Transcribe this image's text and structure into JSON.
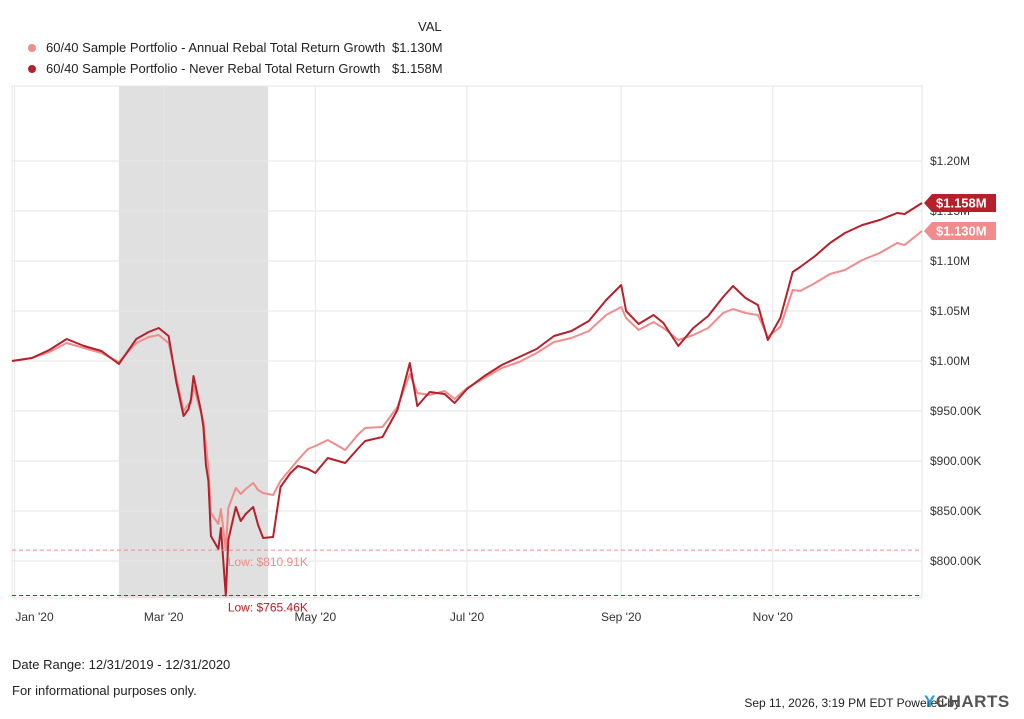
{
  "legend": {
    "header": "VAL",
    "items": [
      {
        "name": "60/40 Sample Portfolio - Annual Rebal Total Return Growth",
        "value": "$1.130M",
        "color": "#f08c8c"
      },
      {
        "name": "60/40 Sample Portfolio - Never Rebal Total Return Growth",
        "value": "$1.158M",
        "color": "#b5202b"
      }
    ]
  },
  "footer": {
    "date_range": "Date Range: 12/31/2019 - 12/31/2020",
    "disclaimer": "For informational purposes only.",
    "timestamp": "Sep 11, 2026, 3:19 PM EDT Powered by",
    "brand_y": "Y",
    "brand_rest": "CHARTS"
  },
  "chart_data": {
    "type": "line",
    "x_range": [
      "2019-12-31",
      "2020-12-31"
    ],
    "ylim": [
      763000,
      1275000
    ],
    "grid": true,
    "legend_position": "top-left",
    "x_ticks": [
      {
        "date": "2020-01-01",
        "label": "Jan '20"
      },
      {
        "date": "2020-03-01",
        "label": "Mar '20"
      },
      {
        "date": "2020-05-01",
        "label": "May '20"
      },
      {
        "date": "2020-07-01",
        "label": "Jul '20"
      },
      {
        "date": "2020-09-01",
        "label": "Sep '20"
      },
      {
        "date": "2020-11-01",
        "label": "Nov '20"
      }
    ],
    "y_ticks": [
      {
        "value": 800000,
        "label": "$800.00K"
      },
      {
        "value": 850000,
        "label": "$850.00K"
      },
      {
        "value": 900000,
        "label": "$900.00K"
      },
      {
        "value": 950000,
        "label": "$950.00K"
      },
      {
        "value": 1000000,
        "label": "$1.00M"
      },
      {
        "value": 1050000,
        "label": "$1.05M"
      },
      {
        "value": 1100000,
        "label": "$1.10M"
      },
      {
        "value": 1150000,
        "label": "$1.15M"
      },
      {
        "value": 1200000,
        "label": "$1.20M"
      }
    ],
    "shaded_region": {
      "start": "2020-02-12",
      "end": "2020-04-12",
      "color": "#e0e0e0"
    },
    "series": [
      {
        "name": "60/40 Sample Portfolio - Annual Rebal Total Return Growth",
        "color": "#f08c8c",
        "end_label": "$1.130M",
        "end_value": 1130000,
        "low_label": "Low: $810.91K",
        "low_value": 810910,
        "points": [
          [
            "2019-12-31",
            1000000
          ],
          [
            "2020-01-08",
            1003000
          ],
          [
            "2020-01-15",
            1009000
          ],
          [
            "2020-01-22",
            1018000
          ],
          [
            "2020-01-29",
            1013000
          ],
          [
            "2020-02-05",
            1008000
          ],
          [
            "2020-02-12",
            999000
          ],
          [
            "2020-02-19",
            1018000
          ],
          [
            "2020-02-24",
            1024000
          ],
          [
            "2020-02-28",
            1026000
          ],
          [
            "2020-03-03",
            1018000
          ],
          [
            "2020-03-06",
            985000
          ],
          [
            "2020-03-09",
            950000
          ],
          [
            "2020-03-11",
            957000
          ],
          [
            "2020-03-12",
            958000
          ],
          [
            "2020-03-13",
            975000
          ],
          [
            "2020-03-16",
            948000
          ],
          [
            "2020-03-17",
            940000
          ],
          [
            "2020-03-18",
            916000
          ],
          [
            "2020-03-19",
            893000
          ],
          [
            "2020-03-20",
            848000
          ],
          [
            "2020-03-23",
            837000
          ],
          [
            "2020-03-24",
            852000
          ],
          [
            "2020-03-26",
            810910
          ],
          [
            "2020-03-27",
            853000
          ],
          [
            "2020-03-30",
            873000
          ],
          [
            "2020-04-01",
            867000
          ],
          [
            "2020-04-03",
            872000
          ],
          [
            "2020-04-06",
            878000
          ],
          [
            "2020-04-08",
            871000
          ],
          [
            "2020-04-10",
            868000
          ],
          [
            "2020-04-14",
            866000
          ],
          [
            "2020-04-17",
            880000
          ],
          [
            "2020-04-21",
            892000
          ],
          [
            "2020-04-24",
            901000
          ],
          [
            "2020-04-28",
            912000
          ],
          [
            "2020-05-01",
            915000
          ],
          [
            "2020-05-06",
            921000
          ],
          [
            "2020-05-13",
            911000
          ],
          [
            "2020-05-18",
            926000
          ],
          [
            "2020-05-21",
            933000
          ],
          [
            "2020-05-28",
            934000
          ],
          [
            "2020-06-03",
            954000
          ],
          [
            "2020-06-08",
            987000
          ],
          [
            "2020-06-11",
            968000
          ],
          [
            "2020-06-16",
            966000
          ],
          [
            "2020-06-22",
            970000
          ],
          [
            "2020-06-26",
            962000
          ],
          [
            "2020-07-01",
            973000
          ],
          [
            "2020-07-08",
            983000
          ],
          [
            "2020-07-15",
            993000
          ],
          [
            "2020-07-22",
            999000
          ],
          [
            "2020-07-29",
            1008000
          ],
          [
            "2020-08-05",
            1019000
          ],
          [
            "2020-08-12",
            1023000
          ],
          [
            "2020-08-19",
            1030000
          ],
          [
            "2020-08-26",
            1046000
          ],
          [
            "2020-09-01",
            1054000
          ],
          [
            "2020-09-03",
            1043000
          ],
          [
            "2020-09-08",
            1031000
          ],
          [
            "2020-09-14",
            1039000
          ],
          [
            "2020-09-18",
            1033000
          ],
          [
            "2020-09-24",
            1021000
          ],
          [
            "2020-09-30",
            1026000
          ],
          [
            "2020-10-06",
            1033000
          ],
          [
            "2020-10-12",
            1048000
          ],
          [
            "2020-10-16",
            1052000
          ],
          [
            "2020-10-21",
            1048000
          ],
          [
            "2020-10-26",
            1046000
          ],
          [
            "2020-10-30",
            1024000
          ],
          [
            "2020-11-04",
            1034000
          ],
          [
            "2020-11-09",
            1071000
          ],
          [
            "2020-11-12",
            1070000
          ],
          [
            "2020-11-18",
            1078000
          ],
          [
            "2020-11-24",
            1087000
          ],
          [
            "2020-11-30",
            1091000
          ],
          [
            "2020-12-07",
            1101000
          ],
          [
            "2020-12-14",
            1108000
          ],
          [
            "2020-12-21",
            1118000
          ],
          [
            "2020-12-24",
            1116000
          ],
          [
            "2020-12-31",
            1130000
          ]
        ]
      },
      {
        "name": "60/40 Sample Portfolio - Never Rebal Total Return Growth",
        "color": "#b5202b",
        "end_label": "$1.158M",
        "end_value": 1158000,
        "low_label": "Low: $765.46K",
        "low_value": 765460,
        "points": [
          [
            "2019-12-31",
            1000000
          ],
          [
            "2020-01-08",
            1003000
          ],
          [
            "2020-01-15",
            1011000
          ],
          [
            "2020-01-22",
            1022000
          ],
          [
            "2020-01-29",
            1015000
          ],
          [
            "2020-02-05",
            1010000
          ],
          [
            "2020-02-12",
            997000
          ],
          [
            "2020-02-19",
            1022000
          ],
          [
            "2020-02-24",
            1029000
          ],
          [
            "2020-02-28",
            1033000
          ],
          [
            "2020-03-03",
            1025000
          ],
          [
            "2020-03-06",
            980000
          ],
          [
            "2020-03-09",
            945000
          ],
          [
            "2020-03-11",
            952000
          ],
          [
            "2020-03-12",
            962000
          ],
          [
            "2020-03-13",
            985000
          ],
          [
            "2020-03-16",
            950000
          ],
          [
            "2020-03-17",
            934000
          ],
          [
            "2020-03-18",
            896000
          ],
          [
            "2020-03-19",
            880000
          ],
          [
            "2020-03-20",
            825000
          ],
          [
            "2020-03-23",
            812000
          ],
          [
            "2020-03-24",
            833000
          ],
          [
            "2020-03-26",
            765460
          ],
          [
            "2020-03-27",
            821000
          ],
          [
            "2020-03-30",
            854000
          ],
          [
            "2020-04-01",
            840000
          ],
          [
            "2020-04-03",
            847000
          ],
          [
            "2020-04-06",
            854000
          ],
          [
            "2020-04-08",
            836000
          ],
          [
            "2020-04-10",
            823000
          ],
          [
            "2020-04-14",
            824000
          ],
          [
            "2020-04-17",
            874000
          ],
          [
            "2020-04-21",
            888000
          ],
          [
            "2020-04-24",
            895000
          ],
          [
            "2020-04-28",
            892000
          ],
          [
            "2020-05-01",
            888000
          ],
          [
            "2020-05-06",
            903000
          ],
          [
            "2020-05-13",
            898000
          ],
          [
            "2020-05-18",
            912000
          ],
          [
            "2020-05-21",
            920000
          ],
          [
            "2020-05-28",
            924000
          ],
          [
            "2020-06-03",
            951000
          ],
          [
            "2020-06-08",
            998000
          ],
          [
            "2020-06-11",
            955000
          ],
          [
            "2020-06-16",
            969000
          ],
          [
            "2020-06-22",
            967000
          ],
          [
            "2020-06-26",
            958000
          ],
          [
            "2020-07-01",
            972000
          ],
          [
            "2020-07-08",
            985000
          ],
          [
            "2020-07-15",
            996000
          ],
          [
            "2020-07-22",
            1004000
          ],
          [
            "2020-07-29",
            1012000
          ],
          [
            "2020-08-05",
            1025000
          ],
          [
            "2020-08-12",
            1030000
          ],
          [
            "2020-08-19",
            1040000
          ],
          [
            "2020-08-26",
            1061000
          ],
          [
            "2020-09-01",
            1076000
          ],
          [
            "2020-09-03",
            1050000
          ],
          [
            "2020-09-08",
            1037000
          ],
          [
            "2020-09-14",
            1046000
          ],
          [
            "2020-09-18",
            1038000
          ],
          [
            "2020-09-24",
            1015000
          ],
          [
            "2020-09-30",
            1033000
          ],
          [
            "2020-10-06",
            1045000
          ],
          [
            "2020-10-12",
            1064000
          ],
          [
            "2020-10-16",
            1075000
          ],
          [
            "2020-10-21",
            1063000
          ],
          [
            "2020-10-26",
            1056000
          ],
          [
            "2020-10-30",
            1021000
          ],
          [
            "2020-11-04",
            1043000
          ],
          [
            "2020-11-09",
            1089000
          ],
          [
            "2020-11-12",
            1094000
          ],
          [
            "2020-11-18",
            1105000
          ],
          [
            "2020-11-24",
            1118000
          ],
          [
            "2020-11-30",
            1128000
          ],
          [
            "2020-12-07",
            1136000
          ],
          [
            "2020-12-14",
            1141000
          ],
          [
            "2020-12-21",
            1148000
          ],
          [
            "2020-12-24",
            1147000
          ],
          [
            "2020-12-31",
            1158000
          ]
        ]
      }
    ]
  }
}
